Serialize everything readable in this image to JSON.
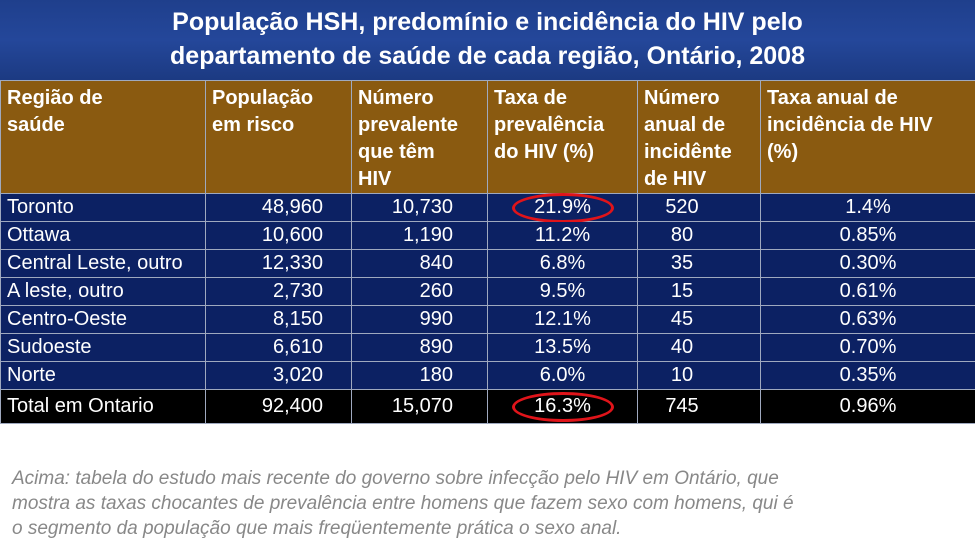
{
  "title": {
    "line1": "População HSH, predomínio e incidência do HIV pelo",
    "line2": "departamento de saúde de cada região, Ontário, 2008"
  },
  "table": {
    "headers": [
      [
        "Região de",
        "saúde"
      ],
      [
        "População",
        "em risco"
      ],
      [
        "Número",
        "prevalente",
        "que têm",
        "HIV"
      ],
      [
        "Taxa de",
        "prevalência",
        "do HIV (%)"
      ],
      [
        "Número",
        "anual de",
        "incidênte",
        "de HIV"
      ],
      [
        "Taxa anual de",
        "incidência de HIV",
        "(%)"
      ]
    ],
    "rows": [
      [
        "Toronto",
        "48,960",
        "10,730",
        "21.9%",
        "520",
        "1.4%"
      ],
      [
        "Ottawa",
        "10,600",
        "1,190",
        "11.2%",
        "80",
        "0.85%"
      ],
      [
        "Central Leste, outro",
        "12,330",
        "840",
        "6.8%",
        "35",
        "0.30%"
      ],
      [
        "A leste, outro",
        "2,730",
        "260",
        "9.5%",
        "15",
        "0.61%"
      ],
      [
        "Centro-Oeste",
        "8,150",
        "990",
        "12.1%",
        "45",
        "0.63%"
      ],
      [
        "Sudoeste",
        "6,610",
        "890",
        "13.5%",
        "40",
        "0.70%"
      ],
      [
        "Norte",
        "3,020",
        "180",
        "6.0%",
        "10",
        "0.35%"
      ]
    ],
    "total": [
      "Total em Ontario",
      "92,400",
      "15,070",
      "16.3%",
      "745",
      "0.96%"
    ]
  },
  "caption": {
    "line1": "Acima: tabela do estudo mais recente do governo sobre infecção pelo HIV em Ontário, que",
    "line2": "mostra as taxas chocantes de prevalência entre homens que fazem sexo com homens, qui é",
    "line3": "o segmento da população que mais freqüentemente prática o sexo anal."
  },
  "colors": {
    "title_bg": "#24479a",
    "header_bg": "#8a5a10",
    "row_bg": "#0c2163",
    "total_bg": "#000000",
    "highlight_circle": "#e0141a"
  }
}
